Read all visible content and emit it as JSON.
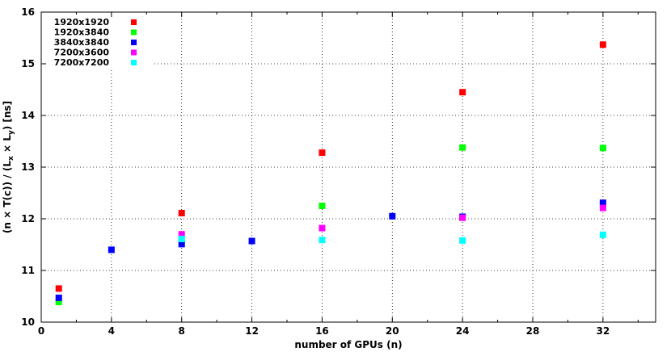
{
  "chart_data": {
    "type": "scatter",
    "xlabel": "number of GPUs (n)",
    "ylabel": "(n x T(c)) / (L_x x L_y) [ns]",
    "ylabel_parts": {
      "a": "(n × T(c)) / (L",
      "sub1": "x",
      "b": " × L",
      "sub2": "y",
      "c": ") [ns]"
    },
    "xlim": [
      0,
      35
    ],
    "ylim": [
      10,
      16
    ],
    "xticks": [
      0,
      4,
      8,
      12,
      16,
      20,
      24,
      28,
      32
    ],
    "yticks": [
      10,
      11,
      12,
      13,
      14,
      15,
      16
    ],
    "grid": true,
    "legend_position": "top-left",
    "series": [
      {
        "name": "1920x1920",
        "color": "#ff0000",
        "points": [
          [
            1,
            10.65
          ],
          [
            8,
            12.11
          ],
          [
            16,
            13.28
          ],
          [
            24,
            14.45
          ],
          [
            32,
            15.37
          ]
        ]
      },
      {
        "name": "1920x3840",
        "color": "#00ff00",
        "points": [
          [
            1,
            10.39
          ],
          [
            8,
            11.56
          ],
          [
            16,
            12.25
          ],
          [
            24,
            13.38
          ],
          [
            32,
            13.37
          ]
        ]
      },
      {
        "name": "3840x3840",
        "color": "#0000ff",
        "points": [
          [
            1,
            10.47
          ],
          [
            4,
            11.4
          ],
          [
            8,
            11.51
          ],
          [
            12,
            11.57
          ],
          [
            20,
            12.05
          ],
          [
            24,
            12.04
          ],
          [
            32,
            12.31
          ]
        ]
      },
      {
        "name": "7200x3600",
        "color": "#ff00ff",
        "points": [
          [
            8,
            11.7
          ],
          [
            16,
            11.82
          ],
          [
            24,
            12.02
          ],
          [
            32,
            12.21
          ]
        ]
      },
      {
        "name": "7200x7200",
        "color": "#00ffff",
        "points": [
          [
            8,
            11.61
          ],
          [
            16,
            11.59
          ],
          [
            24,
            11.58
          ],
          [
            32,
            11.69
          ]
        ]
      }
    ]
  }
}
